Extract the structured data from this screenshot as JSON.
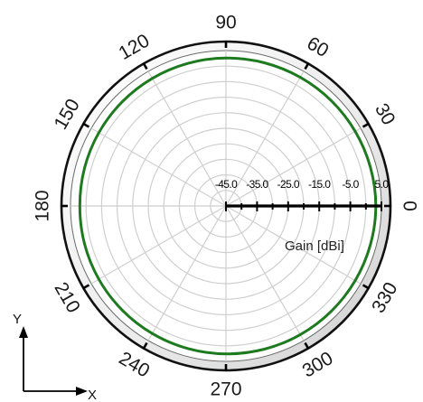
{
  "chart_data": {
    "type": "polar-line",
    "title": "",
    "angle_unit": "degrees",
    "angle_ticks": [
      0,
      30,
      60,
      90,
      120,
      150,
      180,
      210,
      240,
      270,
      300,
      330
    ],
    "angle_tick_labels": [
      "0",
      "30",
      "60",
      "90",
      "120",
      "150",
      "180",
      "210",
      "240",
      "270",
      "300",
      "330"
    ],
    "radial_axis": {
      "label": "Gain [dBi]",
      "range": [
        -45.0,
        5.0
      ],
      "ticks": [
        -45.0,
        -35.0,
        -25.0,
        -15.0,
        -5.0,
        5.0
      ],
      "tick_labels": [
        "-45.0",
        "-35.0",
        "-25.0",
        "-15.0",
        "-5.0",
        "5.0"
      ],
      "minor_step": 5.0
    },
    "grid": true,
    "series": [
      {
        "color": "#1e7a1e",
        "angles": [
          0,
          15,
          30,
          45,
          60,
          75,
          90,
          105,
          120,
          135,
          150,
          165,
          180,
          195,
          210,
          225,
          240,
          255,
          270,
          285,
          300,
          315,
          330,
          345
        ],
        "values": [
          3.2,
          3.1,
          3.0,
          2.9,
          2.8,
          2.7,
          2.6,
          2.5,
          2.4,
          2.3,
          2.2,
          2.1,
          2.0,
          2.1,
          2.2,
          2.3,
          2.4,
          2.5,
          2.6,
          2.7,
          2.8,
          2.9,
          3.0,
          3.1
        ]
      }
    ]
  },
  "coordinate_axes": {
    "x_label": "X",
    "y_label": "Y"
  },
  "colors": {
    "grid": "#cfcfcf",
    "outer_ring": "#111111",
    "trace": "#1e7a1e"
  }
}
